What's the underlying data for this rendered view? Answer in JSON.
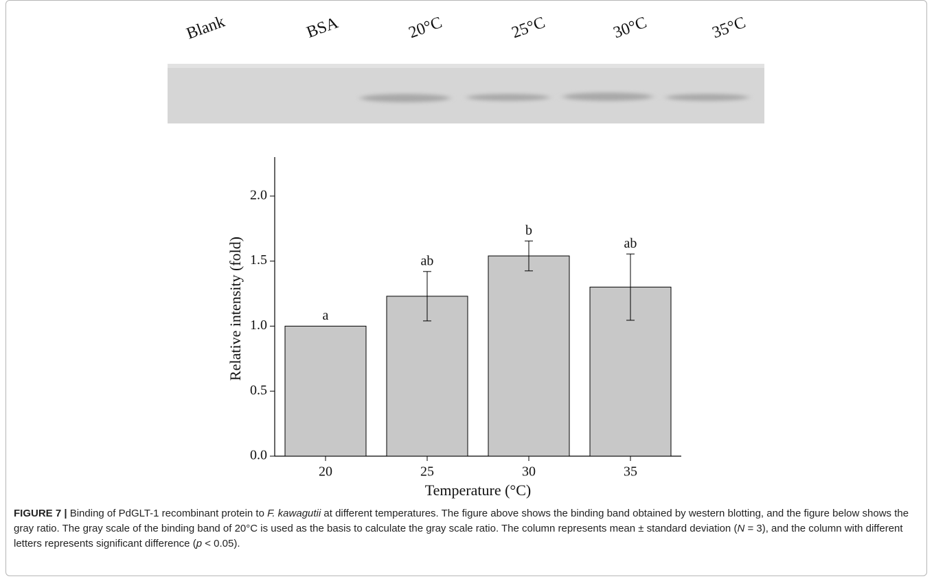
{
  "blot": {
    "lanes": [
      "Blank",
      "BSA",
      "20°C",
      "25°C",
      "30°C",
      "35°C"
    ]
  },
  "chart_data": {
    "type": "bar",
    "x_label": "Temperature (°C)",
    "y_label": "Relative intensity (fold)",
    "categories": [
      "20",
      "25",
      "30",
      "35"
    ],
    "values": [
      1.0,
      1.23,
      1.54,
      1.3
    ],
    "errors": [
      0,
      0.19,
      0.115,
      0.255
    ],
    "letters": [
      "a",
      "ab",
      "b",
      "ab"
    ],
    "color": "#c8c8c8",
    "ylim": [
      0,
      2.3
    ],
    "yticks": [
      {
        "value": 0,
        "label": "0.0"
      },
      0.5,
      {
        "value": 1,
        "label": "1.0"
      },
      1.5,
      {
        "value": 2,
        "label": "2.0"
      }
    ]
  },
  "caption": {
    "label": "FIGURE 7 |",
    "text": [
      "Binding of PdGLT-1 recombinant protein to ",
      "F. kawagutii",
      " at different temperatures. The figure above shows the binding band obtained by western blotting, and the figure below shows the gray ratio. The gray scale of the binding band of 20°C is used as the basis to calculate the gray scale ratio. The column represents mean ± standard deviation (",
      "N",
      " = 3), and the column with different letters represents significant difference (",
      "p",
      " < 0.05)."
    ]
  }
}
